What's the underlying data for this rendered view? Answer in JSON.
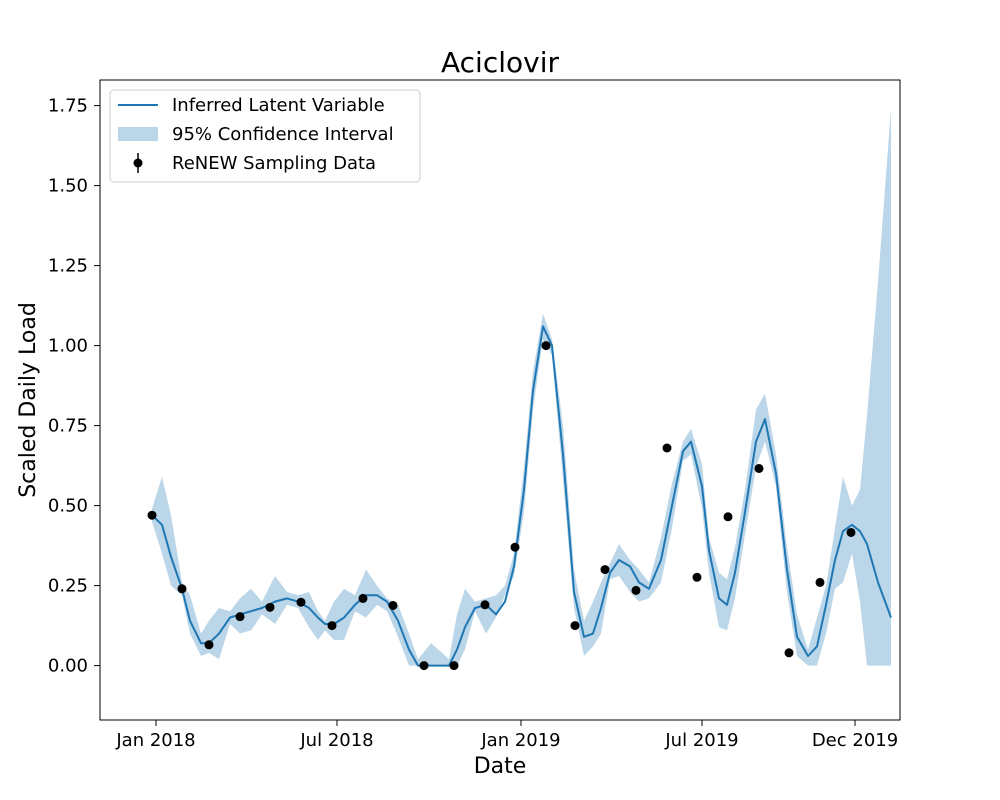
{
  "chart_data": {
    "type": "line",
    "title": "Aciclovir",
    "xlabel": "Date",
    "ylabel": "Scaled Daily Load",
    "xlim": [
      "2017-11-06",
      "2020-01-15"
    ],
    "ylim": [
      -0.17,
      1.83
    ],
    "grid": false,
    "legend_placement": "top-left",
    "x_ticks": [
      {
        "date": "2018-01-01",
        "label": "Jan 2018"
      },
      {
        "date": "2018-07-01",
        "label": "Jul 2018"
      },
      {
        "date": "2019-01-01",
        "label": "Jan 2019"
      },
      {
        "date": "2019-07-01",
        "label": "Jul 2019"
      },
      {
        "date": "2019-12-01",
        "label": "Dec 2019"
      }
    ],
    "y_ticks": [
      {
        "value": 0.0,
        "label": "0.00"
      },
      {
        "value": 0.25,
        "label": "0.25"
      },
      {
        "value": 0.5,
        "label": "0.50"
      },
      {
        "value": 0.75,
        "label": "0.75"
      },
      {
        "value": 1.0,
        "label": "1.00"
      },
      {
        "value": 1.25,
        "label": "1.25"
      },
      {
        "value": 1.5,
        "label": "1.50"
      },
      {
        "value": 1.75,
        "label": "1.75"
      }
    ],
    "series": [
      {
        "name": "Inferred Latent Variable",
        "kind": "line",
        "color": "#1f77b4",
        "points": [
          [
            "2017-12-28",
            0.47
          ],
          [
            "2018-01-07",
            0.44
          ],
          [
            "2018-01-16",
            0.34
          ],
          [
            "2018-01-27",
            0.24
          ],
          [
            "2018-02-04",
            0.14
          ],
          [
            "2018-02-15",
            0.07
          ],
          [
            "2018-02-23",
            0.07
          ],
          [
            "2018-03-05",
            0.1
          ],
          [
            "2018-03-16",
            0.15
          ],
          [
            "2018-03-26",
            0.16
          ],
          [
            "2018-04-06",
            0.17
          ],
          [
            "2018-04-17",
            0.18
          ],
          [
            "2018-04-30",
            0.2
          ],
          [
            "2018-05-12",
            0.21
          ],
          [
            "2018-05-23",
            0.2
          ],
          [
            "2018-06-03",
            0.18
          ],
          [
            "2018-06-12",
            0.15
          ],
          [
            "2018-06-19",
            0.13
          ],
          [
            "2018-06-28",
            0.13
          ],
          [
            "2018-07-08",
            0.15
          ],
          [
            "2018-07-19",
            0.19
          ],
          [
            "2018-07-30",
            0.22
          ],
          [
            "2018-08-10",
            0.22
          ],
          [
            "2018-08-20",
            0.2
          ],
          [
            "2018-08-31",
            0.14
          ],
          [
            "2018-09-11",
            0.05
          ],
          [
            "2018-09-20",
            0.0
          ],
          [
            "2018-10-03",
            0.0
          ],
          [
            "2018-10-14",
            0.0
          ],
          [
            "2018-10-21",
            0.0
          ],
          [
            "2018-10-29",
            0.05
          ],
          [
            "2018-11-06",
            0.12
          ],
          [
            "2018-11-16",
            0.18
          ],
          [
            "2018-11-27",
            0.19
          ],
          [
            "2018-12-07",
            0.16
          ],
          [
            "2018-12-16",
            0.2
          ],
          [
            "2018-12-25",
            0.31
          ],
          [
            "2019-01-04",
            0.55
          ],
          [
            "2019-01-13",
            0.86
          ],
          [
            "2019-01-23",
            1.06
          ],
          [
            "2019-02-01",
            1.0
          ],
          [
            "2019-02-12",
            0.66
          ],
          [
            "2019-02-23",
            0.23
          ],
          [
            "2019-03-05",
            0.09
          ],
          [
            "2019-03-14",
            0.1
          ],
          [
            "2019-03-22",
            0.18
          ],
          [
            "2019-03-31",
            0.29
          ],
          [
            "2019-04-09",
            0.33
          ],
          [
            "2019-04-20",
            0.31
          ],
          [
            "2019-04-29",
            0.26
          ],
          [
            "2019-05-09",
            0.24
          ],
          [
            "2019-05-21",
            0.33
          ],
          [
            "2019-06-01",
            0.5
          ],
          [
            "2019-06-12",
            0.67
          ],
          [
            "2019-06-20",
            0.7
          ],
          [
            "2019-06-31",
            0.56
          ],
          [
            "2019-07-08",
            0.36
          ],
          [
            "2019-07-18",
            0.21
          ],
          [
            "2019-07-26",
            0.19
          ],
          [
            "2019-08-03",
            0.29
          ],
          [
            "2019-08-13",
            0.48
          ],
          [
            "2019-08-24",
            0.7
          ],
          [
            "2019-09-02",
            0.77
          ],
          [
            "2019-09-13",
            0.6
          ],
          [
            "2019-09-24",
            0.3
          ],
          [
            "2019-10-04",
            0.09
          ],
          [
            "2019-10-15",
            0.03
          ],
          [
            "2019-10-24",
            0.06
          ],
          [
            "2019-11-02",
            0.19
          ],
          [
            "2019-11-11",
            0.33
          ],
          [
            "2019-11-19",
            0.42
          ],
          [
            "2019-11-28",
            0.44
          ],
          [
            "2019-12-06",
            0.42
          ],
          [
            "2019-12-13",
            0.38
          ],
          [
            "2019-12-24",
            0.26
          ],
          [
            "2020-01-06",
            0.15
          ]
        ]
      },
      {
        "name": "95% Confidence Interval",
        "kind": "band",
        "color": "#1f77b4",
        "opacity": 0.3,
        "upper": [
          [
            "2017-12-28",
            0.49
          ],
          [
            "2018-01-07",
            0.59
          ],
          [
            "2018-01-16",
            0.47
          ],
          [
            "2018-01-27",
            0.26
          ],
          [
            "2018-02-04",
            0.22
          ],
          [
            "2018-02-15",
            0.1
          ],
          [
            "2018-02-23",
            0.14
          ],
          [
            "2018-03-05",
            0.18
          ],
          [
            "2018-03-16",
            0.17
          ],
          [
            "2018-03-26",
            0.21
          ],
          [
            "2018-04-06",
            0.24
          ],
          [
            "2018-04-17",
            0.2
          ],
          [
            "2018-04-30",
            0.28
          ],
          [
            "2018-05-12",
            0.23
          ],
          [
            "2018-05-23",
            0.22
          ],
          [
            "2018-06-03",
            0.23
          ],
          [
            "2018-06-12",
            0.17
          ],
          [
            "2018-06-19",
            0.14
          ],
          [
            "2018-06-28",
            0.2
          ],
          [
            "2018-07-08",
            0.24
          ],
          [
            "2018-07-19",
            0.22
          ],
          [
            "2018-07-30",
            0.3
          ],
          [
            "2018-08-10",
            0.25
          ],
          [
            "2018-08-20",
            0.21
          ],
          [
            "2018-08-31",
            0.19
          ],
          [
            "2018-09-11",
            0.1
          ],
          [
            "2018-09-20",
            0.02
          ],
          [
            "2018-10-03",
            0.07
          ],
          [
            "2018-10-14",
            0.04
          ],
          [
            "2018-10-21",
            0.02
          ],
          [
            "2018-10-29",
            0.16
          ],
          [
            "2018-11-06",
            0.24
          ],
          [
            "2018-11-16",
            0.2
          ],
          [
            "2018-11-27",
            0.21
          ],
          [
            "2018-12-07",
            0.22
          ],
          [
            "2018-12-16",
            0.25
          ],
          [
            "2018-12-25",
            0.35
          ],
          [
            "2019-01-04",
            0.62
          ],
          [
            "2019-01-13",
            0.92
          ],
          [
            "2019-01-23",
            1.1
          ],
          [
            "2019-02-01",
            1.02
          ],
          [
            "2019-02-12",
            0.75
          ],
          [
            "2019-02-23",
            0.3
          ],
          [
            "2019-03-05",
            0.14
          ],
          [
            "2019-03-14",
            0.2
          ],
          [
            "2019-03-22",
            0.26
          ],
          [
            "2019-03-31",
            0.32
          ],
          [
            "2019-04-09",
            0.38
          ],
          [
            "2019-04-20",
            0.33
          ],
          [
            "2019-04-29",
            0.3
          ],
          [
            "2019-05-09",
            0.26
          ],
          [
            "2019-05-21",
            0.4
          ],
          [
            "2019-06-01",
            0.57
          ],
          [
            "2019-06-12",
            0.7
          ],
          [
            "2019-06-20",
            0.74
          ],
          [
            "2019-06-31",
            0.63
          ],
          [
            "2019-07-08",
            0.4
          ],
          [
            "2019-07-18",
            0.29
          ],
          [
            "2019-07-26",
            0.27
          ],
          [
            "2019-08-03",
            0.37
          ],
          [
            "2019-08-13",
            0.55
          ],
          [
            "2019-08-24",
            0.8
          ],
          [
            "2019-09-02",
            0.85
          ],
          [
            "2019-09-13",
            0.66
          ],
          [
            "2019-09-24",
            0.37
          ],
          [
            "2019-10-04",
            0.16
          ],
          [
            "2019-10-15",
            0.05
          ],
          [
            "2019-10-24",
            0.15
          ],
          [
            "2019-11-02",
            0.25
          ],
          [
            "2019-11-11",
            0.43
          ],
          [
            "2019-11-19",
            0.59
          ],
          [
            "2019-11-28",
            0.5
          ],
          [
            "2019-12-06",
            0.55
          ],
          [
            "2019-12-13",
            0.78
          ],
          [
            "2019-12-24",
            1.2
          ],
          [
            "2020-01-06",
            1.74
          ]
        ],
        "lower": [
          [
            "2017-12-28",
            0.45
          ],
          [
            "2018-01-07",
            0.35
          ],
          [
            "2018-01-16",
            0.25
          ],
          [
            "2018-01-27",
            0.22
          ],
          [
            "2018-02-04",
            0.1
          ],
          [
            "2018-02-15",
            0.03
          ],
          [
            "2018-02-23",
            0.04
          ],
          [
            "2018-03-05",
            0.02
          ],
          [
            "2018-03-16",
            0.13
          ],
          [
            "2018-03-26",
            0.1
          ],
          [
            "2018-04-06",
            0.11
          ],
          [
            "2018-04-17",
            0.16
          ],
          [
            "2018-04-30",
            0.13
          ],
          [
            "2018-05-12",
            0.19
          ],
          [
            "2018-05-23",
            0.18
          ],
          [
            "2018-06-03",
            0.12
          ],
          [
            "2018-06-12",
            0.08
          ],
          [
            "2018-06-19",
            0.11
          ],
          [
            "2018-06-28",
            0.08
          ],
          [
            "2018-07-08",
            0.08
          ],
          [
            "2018-07-19",
            0.17
          ],
          [
            "2018-07-30",
            0.15
          ],
          [
            "2018-08-10",
            0.19
          ],
          [
            "2018-08-20",
            0.17
          ],
          [
            "2018-08-31",
            0.09
          ],
          [
            "2018-09-11",
            0.0
          ],
          [
            "2018-09-20",
            0.0
          ],
          [
            "2018-10-03",
            0.0
          ],
          [
            "2018-10-14",
            0.0
          ],
          [
            "2018-10-21",
            0.0
          ],
          [
            "2018-10-29",
            0.0
          ],
          [
            "2018-11-06",
            0.05
          ],
          [
            "2018-11-16",
            0.17
          ],
          [
            "2018-11-27",
            0.1
          ],
          [
            "2018-12-07",
            0.15
          ],
          [
            "2018-12-16",
            0.22
          ],
          [
            "2018-12-25",
            0.28
          ],
          [
            "2019-01-04",
            0.48
          ],
          [
            "2019-01-13",
            0.8
          ],
          [
            "2019-01-23",
            1.02
          ],
          [
            "2019-02-01",
            0.97
          ],
          [
            "2019-02-12",
            0.58
          ],
          [
            "2019-02-23",
            0.18
          ],
          [
            "2019-03-05",
            0.03
          ],
          [
            "2019-03-14",
            0.06
          ],
          [
            "2019-03-22",
            0.1
          ],
          [
            "2019-03-31",
            0.27
          ],
          [
            "2019-04-09",
            0.28
          ],
          [
            "2019-04-20",
            0.23
          ],
          [
            "2019-04-29",
            0.2
          ],
          [
            "2019-05-09",
            0.21
          ],
          [
            "2019-05-21",
            0.26
          ],
          [
            "2019-06-01",
            0.43
          ],
          [
            "2019-06-12",
            0.64
          ],
          [
            "2019-06-20",
            0.66
          ],
          [
            "2019-06-31",
            0.49
          ],
          [
            "2019-07-08",
            0.29
          ],
          [
            "2019-07-18",
            0.12
          ],
          [
            "2019-07-26",
            0.11
          ],
          [
            "2019-08-03",
            0.21
          ],
          [
            "2019-08-13",
            0.41
          ],
          [
            "2019-08-24",
            0.62
          ],
          [
            "2019-09-02",
            0.7
          ],
          [
            "2019-09-13",
            0.56
          ],
          [
            "2019-09-24",
            0.23
          ],
          [
            "2019-10-04",
            0.03
          ],
          [
            "2019-10-15",
            0.0
          ],
          [
            "2019-10-24",
            0.0
          ],
          [
            "2019-11-02",
            0.1
          ],
          [
            "2019-11-11",
            0.24
          ],
          [
            "2019-11-19",
            0.26
          ],
          [
            "2019-11-28",
            0.35
          ],
          [
            "2019-12-06",
            0.2
          ],
          [
            "2019-12-13",
            0.0
          ],
          [
            "2019-12-24",
            0.0
          ],
          [
            "2020-01-06",
            0.0
          ]
        ]
      },
      {
        "name": "ReNEW Sampling Data",
        "kind": "scatter",
        "color": "#000000",
        "points": [
          [
            "2017-12-28",
            0.47
          ],
          [
            "2018-01-27",
            0.24
          ],
          [
            "2018-02-23",
            0.065
          ],
          [
            "2018-03-26",
            0.153
          ],
          [
            "2018-04-25",
            0.182
          ],
          [
            "2018-05-26",
            0.198
          ],
          [
            "2018-06-26",
            0.125
          ],
          [
            "2018-07-27",
            0.21
          ],
          [
            "2018-08-26",
            0.188
          ],
          [
            "2018-09-26",
            0.0
          ],
          [
            "2018-10-26",
            0.0
          ],
          [
            "2018-11-26",
            0.19
          ],
          [
            "2018-12-26",
            0.37
          ],
          [
            "2019-01-26",
            1.0
          ],
          [
            "2019-02-24",
            0.125
          ],
          [
            "2019-03-26",
            0.3
          ],
          [
            "2019-04-26",
            0.235
          ],
          [
            "2019-05-27",
            0.68
          ],
          [
            "2019-06-26",
            0.276
          ],
          [
            "2019-07-27",
            0.465
          ],
          [
            "2019-08-27",
            0.616
          ],
          [
            "2019-09-26",
            0.04
          ],
          [
            "2019-10-27",
            0.26
          ],
          [
            "2019-11-27",
            0.416
          ]
        ]
      }
    ]
  }
}
